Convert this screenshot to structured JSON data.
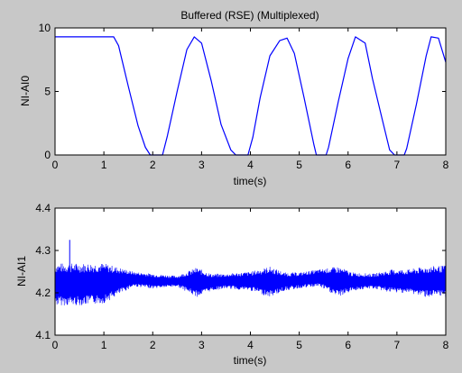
{
  "figure": {
    "background": "#c8c8c8",
    "axes_background": "#ffffff",
    "line_color": "#0000ff"
  },
  "chart_data": [
    {
      "type": "line",
      "title": "Buffered (RSE) (Multiplexed)",
      "xlabel": "time(s)",
      "ylabel": "NI-AI0",
      "xlim": [
        0,
        8
      ],
      "ylim": [
        0,
        10
      ],
      "xticks": [
        "0",
        "1",
        "2",
        "3",
        "4",
        "5",
        "6",
        "7",
        "8"
      ],
      "yticks": [
        "0",
        "5",
        "10"
      ],
      "grid": false,
      "series": [
        {
          "x": [
            0,
            1.2,
            1.3,
            1.5,
            1.7,
            1.85,
            1.95,
            2.2,
            2.3,
            2.5,
            2.7,
            2.85,
            3.0,
            3.2,
            3.4,
            3.6,
            3.7,
            3.75,
            3.95,
            4.05,
            4.2,
            4.4,
            4.6,
            4.75,
            4.9,
            5.1,
            5.3,
            5.35,
            5.55,
            5.6,
            5.8,
            6.0,
            6.15,
            6.35,
            6.5,
            6.7,
            6.85,
            6.95,
            7.15,
            7.2,
            7.4,
            7.6,
            7.7,
            7.85,
            8.0
          ],
          "y": [
            9.3,
            9.3,
            8.6,
            5.4,
            2.3,
            0.6,
            0,
            0,
            1.5,
            5.0,
            8.3,
            9.3,
            8.8,
            5.8,
            2.4,
            0.4,
            0,
            0,
            0,
            1.4,
            4.5,
            7.8,
            9.0,
            9.2,
            8.0,
            4.5,
            0.8,
            0,
            0,
            0.6,
            4.2,
            7.6,
            9.3,
            8.8,
            6.0,
            2.8,
            0.4,
            0,
            0,
            0.5,
            4.0,
            7.8,
            9.3,
            9.2,
            7.3
          ]
        }
      ]
    },
    {
      "type": "line",
      "title": "",
      "xlabel": "time(s)",
      "ylabel": "NI-AI1",
      "xlim": [
        0,
        8
      ],
      "ylim": [
        4.1,
        4.4
      ],
      "xticks": [
        "0",
        "1",
        "2",
        "3",
        "4",
        "5",
        "6",
        "7",
        "8"
      ],
      "yticks": [
        "4.1",
        "4.2",
        "4.3",
        "4.4"
      ],
      "grid": false,
      "spike": {
        "x": 0.3,
        "y": 4.325
      },
      "envelope": {
        "x": [
          0,
          0.5,
          1.0,
          1.3,
          1.6,
          2.0,
          2.5,
          2.9,
          3.2,
          3.5,
          4.0,
          4.4,
          4.7,
          5.0,
          5.4,
          5.8,
          6.1,
          6.5,
          6.9,
          7.2,
          7.6,
          8.0
        ],
        "upper": [
          4.27,
          4.27,
          4.27,
          4.26,
          4.25,
          4.245,
          4.24,
          4.26,
          4.245,
          4.245,
          4.25,
          4.262,
          4.248,
          4.248,
          4.255,
          4.262,
          4.248,
          4.245,
          4.255,
          4.255,
          4.262,
          4.265
        ],
        "lower": [
          4.17,
          4.17,
          4.175,
          4.195,
          4.215,
          4.21,
          4.215,
          4.19,
          4.205,
          4.21,
          4.205,
          4.19,
          4.205,
          4.21,
          4.215,
          4.19,
          4.205,
          4.21,
          4.2,
          4.2,
          4.19,
          4.19
        ]
      }
    }
  ]
}
